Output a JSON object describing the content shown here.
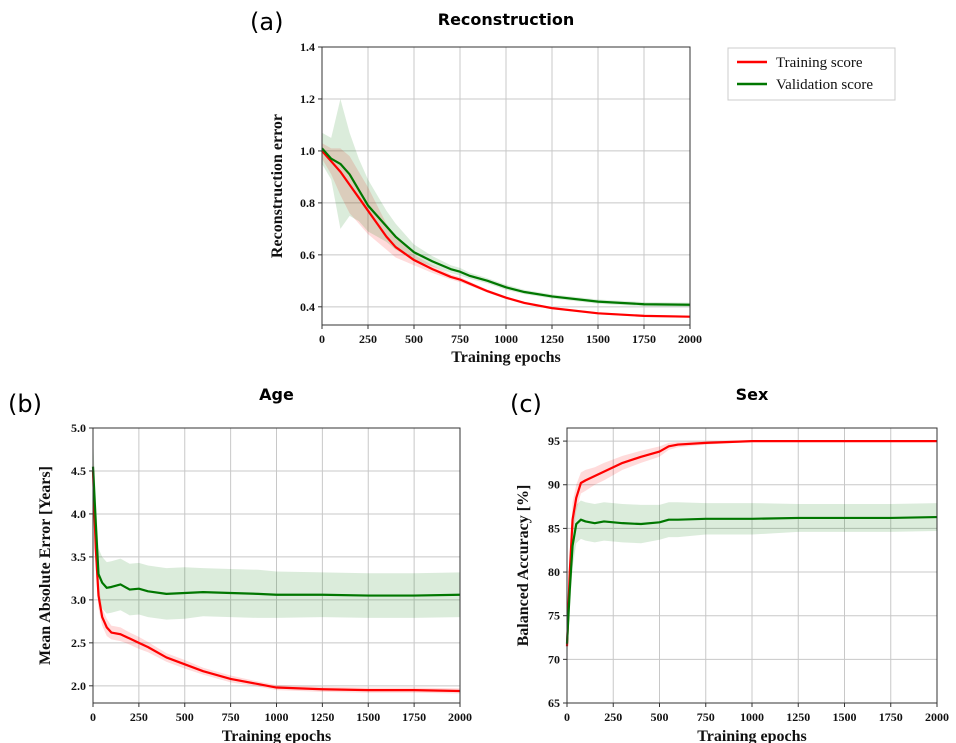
{
  "panel_labels": [
    "(a)",
    "(b)",
    "(c)"
  ],
  "legend": [
    {
      "label": "Training score",
      "color": "#ff0000"
    },
    {
      "label": "Validation score",
      "color": "#007700"
    }
  ],
  "chart_data": [
    {
      "type": "line",
      "title": "Reconstruction",
      "xlabel": "Training epochs",
      "ylabel": "Reconstruction error",
      "xlim": [
        0,
        2000
      ],
      "ylim": [
        0.33,
        1.4
      ],
      "xticks": [
        0,
        250,
        500,
        750,
        1000,
        1250,
        1500,
        1750,
        2000
      ],
      "yticks": [
        0.4,
        0.6,
        0.8,
        1.0,
        1.2,
        1.4
      ],
      "grid": true,
      "x": [
        0,
        50,
        100,
        150,
        200,
        250,
        300,
        350,
        400,
        500,
        600,
        700,
        750,
        800,
        900,
        1000,
        1100,
        1250,
        1500,
        1750,
        2000
      ],
      "series": [
        {
          "name": "Training score",
          "color": "#ff0000",
          "values": [
            1.0,
            0.96,
            0.92,
            0.87,
            0.82,
            0.77,
            0.72,
            0.67,
            0.63,
            0.58,
            0.545,
            0.515,
            0.505,
            0.49,
            0.46,
            0.435,
            0.415,
            0.395,
            0.375,
            0.365,
            0.362
          ],
          "band": [
            0.03,
            0.05,
            0.09,
            0.11,
            0.1,
            0.09,
            0.07,
            0.05,
            0.04,
            0.02,
            0.015,
            0.01,
            0.01,
            0.008,
            0.006,
            0.005,
            0.005,
            0.004,
            0.004,
            0.004,
            0.004
          ]
        },
        {
          "name": "Validation score",
          "color": "#007700",
          "values": [
            1.01,
            0.97,
            0.95,
            0.91,
            0.85,
            0.79,
            0.75,
            0.71,
            0.67,
            0.61,
            0.575,
            0.545,
            0.535,
            0.52,
            0.5,
            0.475,
            0.457,
            0.44,
            0.42,
            0.41,
            0.408
          ],
          "band": [
            0.06,
            0.08,
            0.25,
            0.16,
            0.12,
            0.1,
            0.08,
            0.06,
            0.05,
            0.03,
            0.02,
            0.015,
            0.015,
            0.012,
            0.01,
            0.01,
            0.008,
            0.008,
            0.008,
            0.008,
            0.008
          ]
        }
      ]
    },
    {
      "type": "line",
      "title": "Age",
      "xlabel": "Training epochs",
      "ylabel": "Mean Absolute Error [Years]",
      "xlim": [
        0,
        2000
      ],
      "ylim": [
        1.8,
        5.0
      ],
      "xticks": [
        0,
        250,
        500,
        750,
        1000,
        1250,
        1500,
        1750,
        2000
      ],
      "yticks": [
        2.0,
        2.5,
        3.0,
        3.5,
        4.0,
        4.5,
        5.0
      ],
      "grid": true,
      "x": [
        0,
        15,
        30,
        50,
        75,
        100,
        150,
        200,
        250,
        300,
        400,
        500,
        600,
        750,
        900,
        1000,
        1250,
        1500,
        1750,
        2000
      ],
      "series": [
        {
          "name": "Training score",
          "color": "#ff0000",
          "values": [
            4.5,
            3.6,
            3.05,
            2.8,
            2.68,
            2.62,
            2.6,
            2.55,
            2.5,
            2.45,
            2.33,
            2.25,
            2.17,
            2.08,
            2.02,
            1.98,
            1.96,
            1.95,
            1.95,
            1.94
          ],
          "band": [
            0.3,
            0.25,
            0.15,
            0.1,
            0.1,
            0.08,
            0.08,
            0.07,
            0.07,
            0.06,
            0.05,
            0.05,
            0.04,
            0.04,
            0.03,
            0.03,
            0.03,
            0.03,
            0.03,
            0.03
          ]
        },
        {
          "name": "Validation score",
          "color": "#007700",
          "values": [
            4.55,
            3.9,
            3.3,
            3.2,
            3.14,
            3.15,
            3.18,
            3.12,
            3.13,
            3.1,
            3.07,
            3.08,
            3.09,
            3.08,
            3.07,
            3.06,
            3.06,
            3.05,
            3.05,
            3.06
          ],
          "band": [
            0.35,
            0.3,
            0.3,
            0.3,
            0.3,
            0.3,
            0.3,
            0.3,
            0.3,
            0.3,
            0.3,
            0.3,
            0.28,
            0.28,
            0.28,
            0.27,
            0.26,
            0.26,
            0.26,
            0.26
          ]
        }
      ]
    },
    {
      "type": "line",
      "title": "Sex",
      "xlabel": "Training epochs",
      "ylabel": "Balanced Accuracy [%]",
      "xlim": [
        0,
        2000
      ],
      "ylim": [
        65,
        96.5
      ],
      "xticks": [
        0,
        250,
        500,
        750,
        1000,
        1250,
        1500,
        1750,
        2000
      ],
      "yticks": [
        65,
        70,
        75,
        80,
        85,
        90,
        95
      ],
      "grid": true,
      "x": [
        0,
        15,
        30,
        50,
        75,
        100,
        150,
        200,
        250,
        300,
        400,
        500,
        550,
        600,
        750,
        1000,
        1250,
        1500,
        1750,
        2000
      ],
      "series": [
        {
          "name": "Training score",
          "color": "#ff0000",
          "values": [
            71.5,
            80,
            86,
            88.5,
            90.2,
            90.5,
            91,
            91.5,
            92,
            92.5,
            93.2,
            93.8,
            94.4,
            94.6,
            94.8,
            95,
            95,
            95,
            95,
            95
          ],
          "band": [
            1.5,
            2,
            2,
            1.5,
            1.2,
            1.2,
            1,
            1,
            0.9,
            0.8,
            0.7,
            0.6,
            0.4,
            0.3,
            0.2,
            0.1,
            0.1,
            0.1,
            0.1,
            0.1
          ]
        },
        {
          "name": "Validation score",
          "color": "#007700",
          "values": [
            71.8,
            78,
            83,
            85.5,
            86,
            85.8,
            85.6,
            85.8,
            85.7,
            85.6,
            85.5,
            85.7,
            86,
            86,
            86.1,
            86.1,
            86.2,
            86.2,
            86.2,
            86.3
          ],
          "band": [
            2,
            2.5,
            2.5,
            2.2,
            2.2,
            2.2,
            2.2,
            2.2,
            2.2,
            2.2,
            2.2,
            2,
            2,
            2,
            1.8,
            1.8,
            1.6,
            1.6,
            1.6,
            1.6
          ]
        }
      ]
    }
  ]
}
